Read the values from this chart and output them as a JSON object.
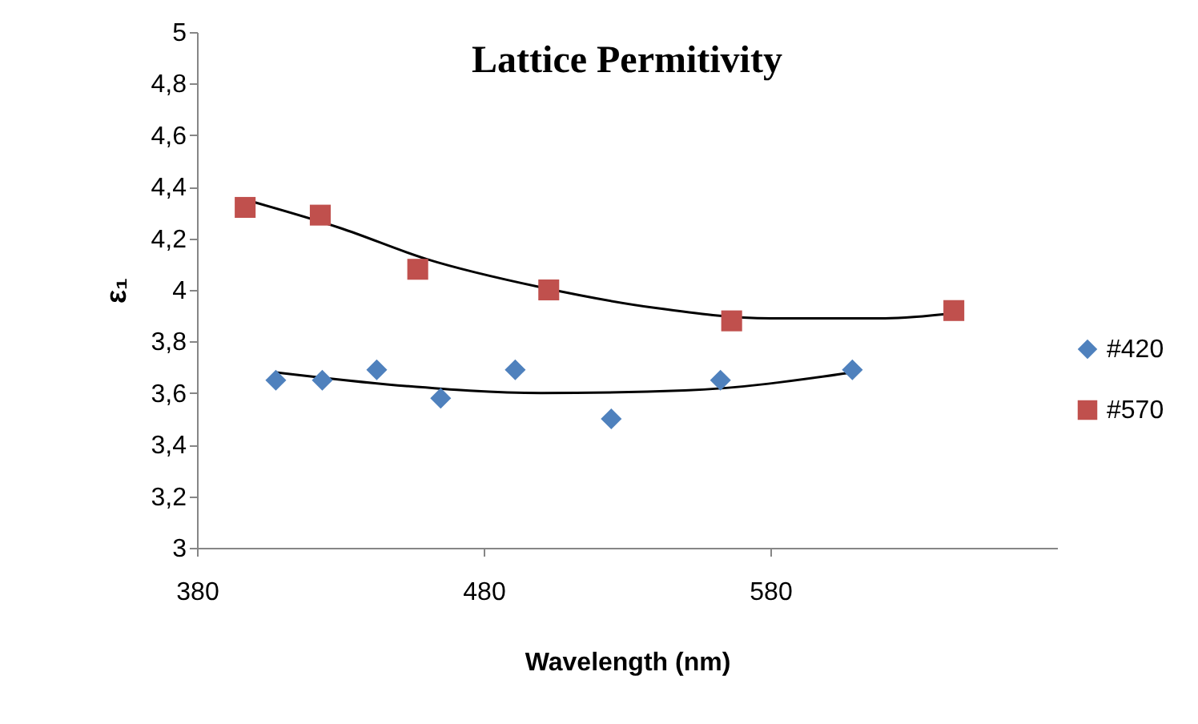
{
  "chart_data": {
    "type": "scatter",
    "title": "Lattice Permitivity",
    "xlabel": "Wavelength (nm)",
    "ylabel": "ε₁",
    "xlim": [
      380,
      680
    ],
    "xticks": [
      380,
      480,
      580
    ],
    "ylim": [
      3,
      5
    ],
    "yticks": [
      3,
      {
        "value": 3.2,
        "label": "3,2"
      },
      {
        "value": 3.4,
        "label": "3,4"
      },
      {
        "value": 3.6,
        "label": "3,6"
      },
      {
        "value": 3.8,
        "label": "3,8"
      },
      4,
      {
        "value": 4.2,
        "label": "4,2"
      },
      {
        "value": 4.4,
        "label": "4,4"
      },
      {
        "value": 4.6,
        "label": "4,6"
      },
      {
        "value": 4.8,
        "label": "4,8"
      },
      5
    ],
    "grid": false,
    "legend": "right",
    "series": [
      {
        "name": "#420",
        "color": "#4f81bd",
        "marker": "diamond",
        "x": [
          407.5,
          423.7,
          442.7,
          465,
          491,
          524.5,
          562.6,
          608.6
        ],
        "values": [
          3.65,
          3.65,
          3.69,
          3.58,
          3.69,
          3.5,
          3.65,
          3.69
        ]
      },
      {
        "name": "#570",
        "color": "#c0504d",
        "marker": "square",
        "x": [
          396.8,
          423,
          457,
          502.7,
          566.5,
          644
        ],
        "values": [
          4.32,
          4.29,
          4.08,
          4.0,
          3.88,
          3.92
        ]
      },
      {
        "type": "line",
        "color": "#000000",
        "marker": "none",
        "x": [
          407.5,
          450,
          500,
          550,
          608.6
        ],
        "values": [
          3.68,
          3.63,
          3.6,
          3.61,
          3.68
        ]
      },
      {
        "type": "line",
        "color": "#000000",
        "marker": "none",
        "x": [
          396.8,
          430,
          460,
          500,
          540,
          580,
          620,
          644
        ],
        "values": [
          4.35,
          4.24,
          4.12,
          4.01,
          3.93,
          3.89,
          3.89,
          3.91
        ]
      }
    ]
  }
}
